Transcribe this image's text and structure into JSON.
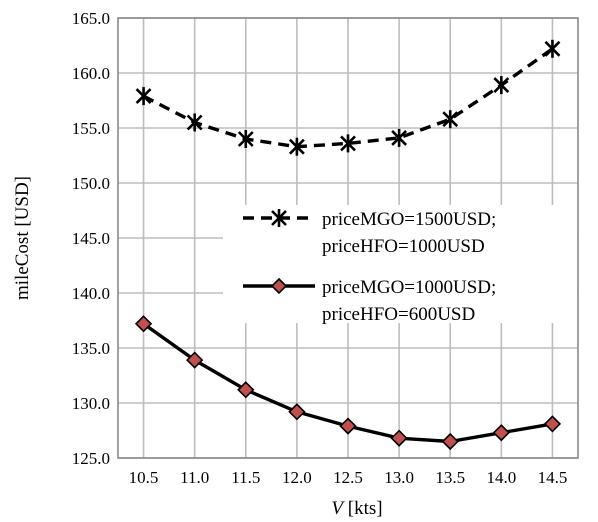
{
  "chart_data": {
    "type": "line",
    "title": "",
    "xlabel_italic": "V",
    "xlabel_rest": " [kts]",
    "ylabel": "mileCost [USD]",
    "x": [
      10.5,
      11.0,
      11.5,
      12.0,
      12.5,
      13.0,
      13.5,
      14.0,
      14.5
    ],
    "x_tick_labels": [
      "10.5",
      "11.0",
      "11.5",
      "12.0",
      "12.5",
      "13.0",
      "13.5",
      "14.0",
      "14.5"
    ],
    "ylim": [
      125,
      165
    ],
    "y_ticks": [
      125,
      130,
      135,
      140,
      145,
      150,
      155,
      160,
      165
    ],
    "y_tick_labels": [
      "125.0",
      "130.0",
      "135.0",
      "140.0",
      "145.0",
      "150.0",
      "155.0",
      "160.0",
      "165.0"
    ],
    "grid": true,
    "legend_position": "right-center",
    "series": [
      {
        "label_line1": "priceMGO=1500USD;",
        "label_line2": "priceHFO=1000USD",
        "values": [
          157.9,
          155.5,
          154.0,
          153.3,
          153.6,
          154.1,
          155.8,
          158.9,
          162.2
        ],
        "line_style": "dashed",
        "marker": "x-cross",
        "color": "#000000"
      },
      {
        "label_line1": "priceMGO=1000USD;",
        "label_line2": "priceHFO=600USD",
        "values": [
          137.2,
          133.9,
          131.2,
          129.2,
          127.9,
          126.8,
          126.5,
          127.3,
          128.1
        ],
        "line_style": "solid",
        "marker": "diamond",
        "color": "#000000",
        "marker_fill": "#c0504d"
      }
    ]
  }
}
